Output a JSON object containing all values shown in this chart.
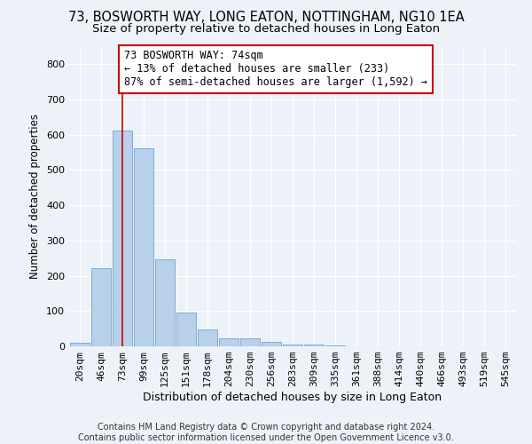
{
  "title": "73, BOSWORTH WAY, LONG EATON, NOTTINGHAM, NG10 1EA",
  "subtitle": "Size of property relative to detached houses in Long Eaton",
  "xlabel": "Distribution of detached houses by size in Long Eaton",
  "ylabel": "Number of detached properties",
  "bar_color": "#b8d0ea",
  "bar_edge_color": "#7aafd4",
  "categories": [
    "20sqm",
    "46sqm",
    "73sqm",
    "99sqm",
    "125sqm",
    "151sqm",
    "178sqm",
    "204sqm",
    "230sqm",
    "256sqm",
    "283sqm",
    "309sqm",
    "335sqm",
    "361sqm",
    "388sqm",
    "414sqm",
    "440sqm",
    "466sqm",
    "493sqm",
    "519sqm",
    "545sqm"
  ],
  "values": [
    10,
    222,
    612,
    562,
    248,
    95,
    48,
    22,
    22,
    13,
    5,
    5,
    2,
    0,
    0,
    0,
    0,
    0,
    0,
    0,
    0
  ],
  "ylim": [
    0,
    850
  ],
  "yticks": [
    0,
    100,
    200,
    300,
    400,
    500,
    600,
    700,
    800
  ],
  "property_line_x": 2,
  "property_label": "73 BOSWORTH WAY: 74sqm",
  "annotation_line1": "← 13% of detached houses are smaller (233)",
  "annotation_line2": "87% of semi-detached houses are larger (1,592) →",
  "footer_line1": "Contains HM Land Registry data © Crown copyright and database right 2024.",
  "footer_line2": "Contains public sector information licensed under the Open Government Licence v3.0.",
  "background_color": "#edf2f9",
  "grid_color": "#ffffff",
  "annotation_box_color": "#ffffff",
  "annotation_box_edge_color": "#cc0000",
  "property_line_color": "#cc0000",
  "title_fontsize": 10.5,
  "subtitle_fontsize": 9.5,
  "xlabel_fontsize": 9,
  "ylabel_fontsize": 8.5,
  "tick_fontsize": 8,
  "annotation_fontsize": 8.5,
  "footer_fontsize": 7
}
